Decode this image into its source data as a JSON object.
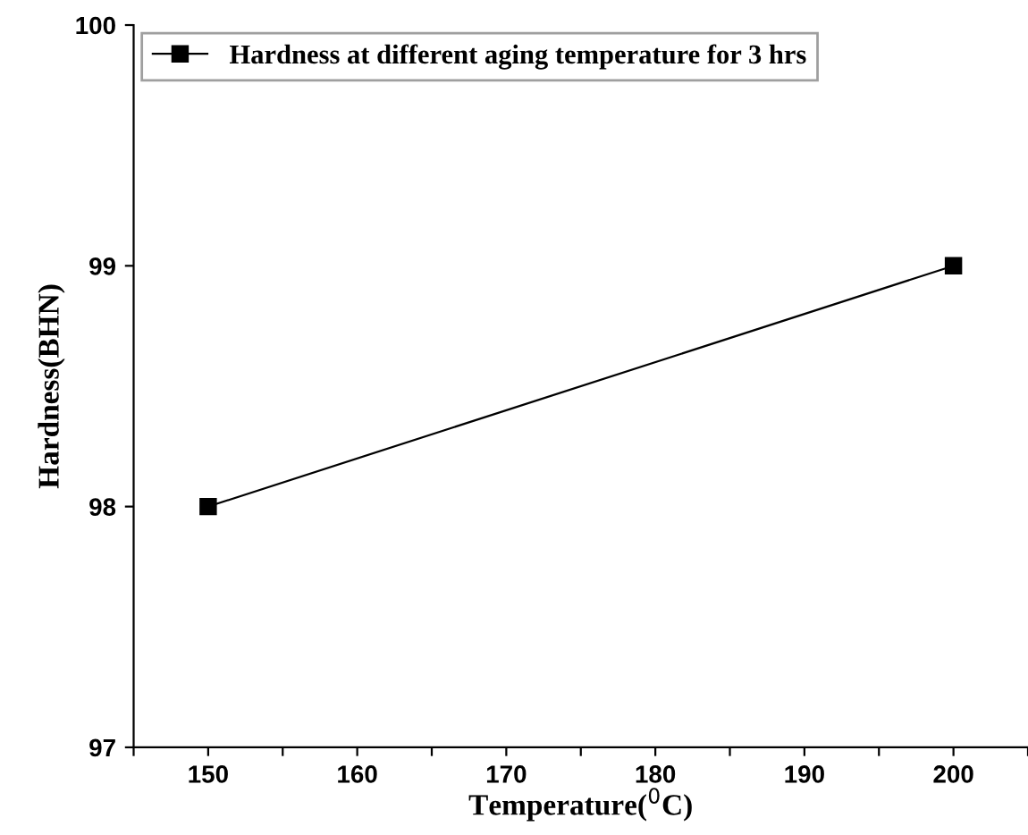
{
  "chart_data": {
    "type": "line",
    "xlabel": "Temperature($^{0}$C)",
    "ylabel": "Hardness(BHN)",
    "x": [
      150,
      200
    ],
    "series": [
      {
        "name": "Hardness at different aging temperature for 3 hrs",
        "color": "#000000",
        "values": [
          98,
          99
        ]
      }
    ],
    "marker": "square",
    "line_style": "solid",
    "xlim": [
      145,
      205
    ],
    "ylim": [
      97,
      100
    ],
    "xticks": [
      {
        "value": 145,
        "label": null
      },
      150,
      {
        "value": 155,
        "label": null
      },
      160,
      {
        "value": 165,
        "label": null
      },
      170,
      {
        "value": 175,
        "label": null
      },
      180,
      {
        "value": 185,
        "label": null
      },
      190,
      {
        "value": 195,
        "label": null
      },
      200,
      {
        "value": 205,
        "label": null
      }
    ],
    "yticks": [
      97,
      98,
      99,
      100
    ],
    "grid": false,
    "legend": "top left"
  }
}
